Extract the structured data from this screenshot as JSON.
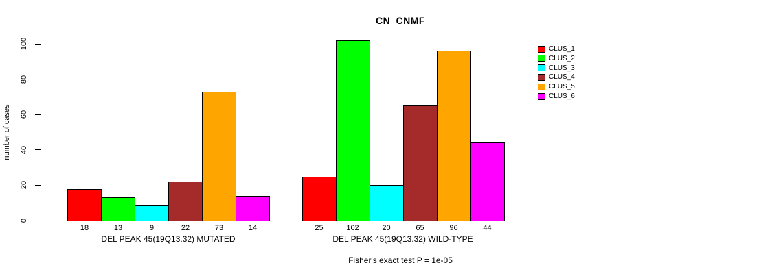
{
  "chart_data": {
    "type": "bar",
    "title": "CN_CNMF",
    "ylabel": "number of cases",
    "ylim": [
      0,
      100
    ],
    "yticks": [
      0,
      20,
      40,
      60,
      80,
      100
    ],
    "grid": false,
    "legend_position": "top-right",
    "bar_value_labels_shown": true,
    "categories": [
      "DEL PEAK 45(19Q13.32) MUTATED",
      "DEL PEAK 45(19Q13.32) WILD-TYPE"
    ],
    "series": [
      {
        "name": "CLUS_1",
        "color": "#ff0000",
        "values": [
          18,
          25
        ]
      },
      {
        "name": "CLUS_2",
        "color": "#00ff00",
        "values": [
          13,
          102
        ]
      },
      {
        "name": "CLUS_3",
        "color": "#00ffff",
        "values": [
          9,
          20
        ]
      },
      {
        "name": "CLUS_4",
        "color": "#a52a2a",
        "values": [
          22,
          65
        ]
      },
      {
        "name": "CLUS_5",
        "color": "#ffa500",
        "values": [
          73,
          96
        ]
      },
      {
        "name": "CLUS_6",
        "color": "#ff00ff",
        "values": [
          14,
          44
        ]
      }
    ],
    "annotation": "Fisher's exact test P = 1e-05",
    "colors": {
      "background": "#ffffff",
      "axis": "#000000",
      "text": "#000000"
    }
  }
}
